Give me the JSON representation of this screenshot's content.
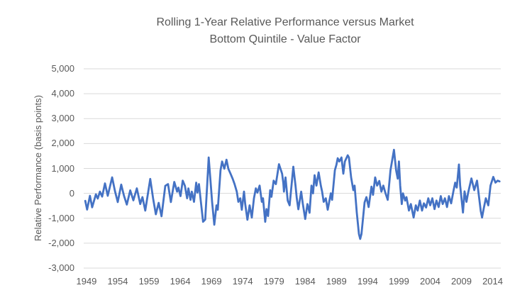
{
  "chart_data": {
    "type": "line",
    "title": "Rolling 1-Year Relative Performance versus Market",
    "subtitle": "Bottom Quintile - Value Factor",
    "ylabel": "Relative Performance (basis points)",
    "xlabel": "",
    "ylim": [
      -3000,
      5000
    ],
    "xlim": [
      1948.55,
      2015.3
    ],
    "grid": "horizontal-only",
    "legend_position": "none",
    "line_color": "#4472C4",
    "grid_color": "#D9D9D9",
    "text_color": "#595959",
    "y_ticks": [
      {
        "value": 5000,
        "label": "5,000"
      },
      {
        "value": 4000,
        "label": "4,000"
      },
      {
        "value": 3000,
        "label": "3,000"
      },
      {
        "value": 2000,
        "label": "2,000"
      },
      {
        "value": 1000,
        "label": "1,000"
      },
      {
        "value": 0,
        "label": "0"
      },
      {
        "value": -1000,
        "label": "-1,000"
      },
      {
        "value": -2000,
        "label": "-2,000"
      },
      {
        "value": -3000,
        "label": "-3,000"
      }
    ],
    "x_ticks": [
      {
        "value": 1949,
        "label": "1949"
      },
      {
        "value": 1954,
        "label": "1954"
      },
      {
        "value": 1959,
        "label": "1959"
      },
      {
        "value": 1964,
        "label": "1964"
      },
      {
        "value": 1969,
        "label": "1969"
      },
      {
        "value": 1974,
        "label": "1974"
      },
      {
        "value": 1979,
        "label": "1979"
      },
      {
        "value": 1984,
        "label": "1984"
      },
      {
        "value": 1989,
        "label": "1989"
      },
      {
        "value": 1994,
        "label": "1994"
      },
      {
        "value": 1999,
        "label": "1999"
      },
      {
        "value": 2004,
        "label": "2004"
      },
      {
        "value": 2009,
        "label": "2009"
      },
      {
        "value": 2014,
        "label": "2014"
      }
    ],
    "series": [
      {
        "name": "Bottom Quintile - Value Factor",
        "points": [
          [
            1948.8,
            -300
          ],
          [
            1949.1,
            -650
          ],
          [
            1949.55,
            -100
          ],
          [
            1949.9,
            -560
          ],
          [
            1950.5,
            -40
          ],
          [
            1950.8,
            -210
          ],
          [
            1951.15,
            70
          ],
          [
            1951.5,
            -130
          ],
          [
            1951.95,
            400
          ],
          [
            1952.4,
            -100
          ],
          [
            1953.1,
            640
          ],
          [
            1953.55,
            100
          ],
          [
            1954.0,
            -350
          ],
          [
            1954.55,
            350
          ],
          [
            1955.0,
            -100
          ],
          [
            1955.45,
            -450
          ],
          [
            1956.0,
            120
          ],
          [
            1956.5,
            -280
          ],
          [
            1957.05,
            200
          ],
          [
            1957.6,
            -430
          ],
          [
            1957.95,
            -150
          ],
          [
            1958.4,
            -690
          ],
          [
            1959.2,
            580
          ],
          [
            1959.65,
            -200
          ],
          [
            1960.1,
            -840
          ],
          [
            1960.55,
            -380
          ],
          [
            1961.0,
            -920
          ],
          [
            1961.6,
            300
          ],
          [
            1962.05,
            370
          ],
          [
            1962.5,
            -350
          ],
          [
            1963.05,
            460
          ],
          [
            1963.5,
            70
          ],
          [
            1963.7,
            230
          ],
          [
            1964.05,
            -110
          ],
          [
            1964.4,
            510
          ],
          [
            1964.75,
            300
          ],
          [
            1965.1,
            -200
          ],
          [
            1965.3,
            200
          ],
          [
            1965.65,
            -260
          ],
          [
            1965.85,
            70
          ],
          [
            1966.2,
            -340
          ],
          [
            1966.55,
            430
          ],
          [
            1966.75,
            30
          ],
          [
            1967.0,
            370
          ],
          [
            1967.3,
            -340
          ],
          [
            1967.65,
            -1140
          ],
          [
            1968.0,
            -1050
          ],
          [
            1968.3,
            300
          ],
          [
            1968.55,
            1440
          ],
          [
            1968.9,
            300
          ],
          [
            1969.1,
            -340
          ],
          [
            1969.45,
            -1260
          ],
          [
            1969.8,
            -480
          ],
          [
            1970.0,
            -660
          ],
          [
            1970.45,
            930
          ],
          [
            1970.7,
            1280
          ],
          [
            1971.05,
            990
          ],
          [
            1971.4,
            1350
          ],
          [
            1971.7,
            990
          ],
          [
            1972.05,
            790
          ],
          [
            1972.4,
            580
          ],
          [
            1972.7,
            370
          ],
          [
            1973.05,
            70
          ],
          [
            1973.3,
            -340
          ],
          [
            1973.6,
            -200
          ],
          [
            1973.85,
            -660
          ],
          [
            1974.2,
            70
          ],
          [
            1974.4,
            -430
          ],
          [
            1974.75,
            -1060
          ],
          [
            1975.1,
            -480
          ],
          [
            1975.45,
            -970
          ],
          [
            1975.8,
            -200
          ],
          [
            1976.1,
            200
          ],
          [
            1976.35,
            30
          ],
          [
            1976.7,
            310
          ],
          [
            1977.05,
            -340
          ],
          [
            1977.25,
            -200
          ],
          [
            1977.6,
            -1140
          ],
          [
            1977.8,
            -630
          ],
          [
            1978.05,
            -910
          ],
          [
            1978.4,
            130
          ],
          [
            1978.6,
            -140
          ],
          [
            1978.95,
            510
          ],
          [
            1979.3,
            370
          ],
          [
            1979.8,
            1170
          ],
          [
            1980.3,
            790
          ],
          [
            1980.5,
            420
          ],
          [
            1980.6,
            70
          ],
          [
            1980.85,
            640
          ],
          [
            1981.2,
            -290
          ],
          [
            1981.5,
            -480
          ],
          [
            1982.1,
            1070
          ],
          [
            1982.45,
            310
          ],
          [
            1982.65,
            -200
          ],
          [
            1982.9,
            -640
          ],
          [
            1983.35,
            70
          ],
          [
            1983.6,
            -400
          ],
          [
            1984.0,
            -1030
          ],
          [
            1984.35,
            -430
          ],
          [
            1984.7,
            -780
          ],
          [
            1985.0,
            310
          ],
          [
            1985.25,
            0
          ],
          [
            1985.5,
            730
          ],
          [
            1985.8,
            310
          ],
          [
            1986.15,
            840
          ],
          [
            1986.5,
            310
          ],
          [
            1986.7,
            70
          ],
          [
            1986.95,
            -340
          ],
          [
            1987.3,
            -200
          ],
          [
            1987.6,
            -660
          ],
          [
            1988.1,
            0
          ],
          [
            1988.3,
            -260
          ],
          [
            1988.75,
            930
          ],
          [
            1989.0,
            1150
          ],
          [
            1989.2,
            1410
          ],
          [
            1989.45,
            1280
          ],
          [
            1989.8,
            1440
          ],
          [
            1990.1,
            790
          ],
          [
            1990.35,
            1280
          ],
          [
            1990.8,
            1530
          ],
          [
            1991.0,
            1440
          ],
          [
            1991.35,
            640
          ],
          [
            1991.7,
            130
          ],
          [
            1991.9,
            310
          ],
          [
            1992.25,
            -780
          ],
          [
            1992.6,
            -1630
          ],
          [
            1992.8,
            -1830
          ],
          [
            1993.0,
            -1630
          ],
          [
            1993.5,
            -360
          ],
          [
            1993.8,
            -150
          ],
          [
            1994.15,
            -550
          ],
          [
            1994.6,
            270
          ],
          [
            1994.85,
            -60
          ],
          [
            1995.2,
            640
          ],
          [
            1995.5,
            310
          ],
          [
            1995.85,
            500
          ],
          [
            1996.2,
            70
          ],
          [
            1996.5,
            310
          ],
          [
            1996.85,
            0
          ],
          [
            1997.2,
            -260
          ],
          [
            1997.65,
            930
          ],
          [
            1998.2,
            1750
          ],
          [
            1998.55,
            930
          ],
          [
            1998.8,
            590
          ],
          [
            1999.0,
            1280
          ],
          [
            1999.2,
            310
          ],
          [
            1999.45,
            -430
          ],
          [
            1999.65,
            0
          ],
          [
            2000.0,
            -290
          ],
          [
            2000.2,
            -150
          ],
          [
            2000.6,
            -690
          ],
          [
            2000.9,
            -430
          ],
          [
            2001.35,
            -970
          ],
          [
            2001.7,
            -480
          ],
          [
            2002.0,
            -690
          ],
          [
            2002.35,
            -290
          ],
          [
            2002.7,
            -690
          ],
          [
            2003.0,
            -400
          ],
          [
            2003.35,
            -570
          ],
          [
            2003.7,
            -200
          ],
          [
            2004.0,
            -480
          ],
          [
            2004.35,
            -200
          ],
          [
            2004.7,
            -630
          ],
          [
            2005.0,
            -290
          ],
          [
            2005.35,
            -550
          ],
          [
            2005.7,
            -110
          ],
          [
            2006.0,
            -430
          ],
          [
            2006.35,
            -200
          ],
          [
            2006.7,
            -550
          ],
          [
            2007.0,
            -110
          ],
          [
            2007.35,
            -400
          ],
          [
            2007.7,
            70
          ],
          [
            2008.0,
            430
          ],
          [
            2008.25,
            230
          ],
          [
            2008.6,
            1160
          ],
          [
            2008.8,
            310
          ],
          [
            2009.25,
            -770
          ],
          [
            2009.5,
            80
          ],
          [
            2009.8,
            -340
          ],
          [
            2010.05,
            0
          ],
          [
            2010.6,
            600
          ],
          [
            2011.05,
            130
          ],
          [
            2011.5,
            510
          ],
          [
            2011.75,
            0
          ],
          [
            2012.1,
            -720
          ],
          [
            2012.3,
            -970
          ],
          [
            2012.55,
            -630
          ],
          [
            2012.9,
            -200
          ],
          [
            2013.3,
            -480
          ],
          [
            2013.65,
            310
          ],
          [
            2014.1,
            660
          ],
          [
            2014.45,
            430
          ],
          [
            2014.8,
            510
          ],
          [
            2015.1,
            480
          ]
        ]
      }
    ]
  }
}
